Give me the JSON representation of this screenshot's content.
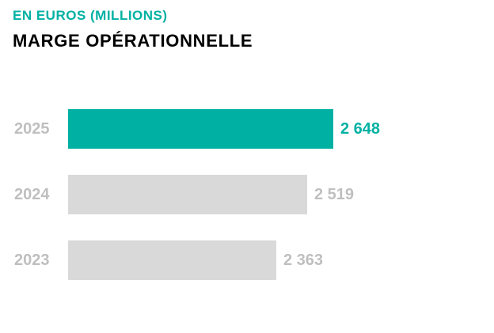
{
  "header": {
    "subtitle": "EN EUROS (MILLIONS)",
    "title": "MARGE OPÉRATIONNELLE"
  },
  "colors": {
    "accent_teal": "#00B1A3",
    "bar_gray": "#D9D9D9",
    "label_gray": "#BFBFBF",
    "title_black": "#000000",
    "page_bg": "#FFFFFF"
  },
  "chart_data": {
    "type": "bar",
    "orientation": "horizontal",
    "title": "MARGE OPÉRATIONNELLE",
    "subtitle": "EN EUROS (MILLIONS)",
    "unit": "euros (millions)",
    "categories": [
      "2025",
      "2024",
      "2023"
    ],
    "values": [
      2648,
      2519,
      2363
    ],
    "value_labels": [
      "2 648",
      "2 519",
      "2 363"
    ],
    "highlighted_category": "2025",
    "xlim": [
      1330,
      2648
    ],
    "grid": false,
    "legend": "none"
  }
}
